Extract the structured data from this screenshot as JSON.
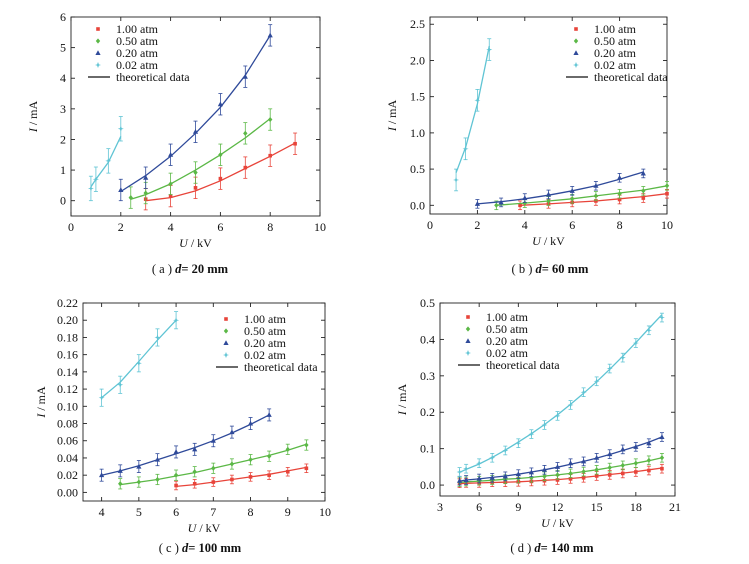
{
  "colors": {
    "1.00 atm": "#e8443a",
    "0.50 atm": "#5bb846",
    "0.20 atm": "#2f4a9a",
    "0.02 atm": "#5fc4d4",
    "theory": "#111111"
  },
  "chart_data": [
    {
      "id": "a",
      "type": "scatter",
      "caption_prefix": "( a )",
      "caption_d": "d",
      "caption_rest": "= 20  mm",
      "xlabel": "U / kV",
      "ylabel": "I / mA",
      "xlim": [
        0,
        10
      ],
      "ylim": [
        -0.5,
        6
      ],
      "xticks": [
        0,
        2,
        4,
        6,
        8,
        10
      ],
      "yticks": [
        0,
        1,
        2,
        3,
        4,
        5,
        6
      ],
      "xtick_labels": [
        "0",
        "2",
        "4",
        "6",
        "8",
        "10"
      ],
      "ytick_labels": [
        "0",
        "1",
        "2",
        "3",
        "4",
        "5",
        "6"
      ],
      "legend_position": "top-left",
      "legend": [
        "1.00  atm",
        "0.50  atm",
        "0.20  atm",
        "0.02  atm",
        "theoretical data"
      ],
      "series": [
        {
          "name": "1.00 atm",
          "x": [
            3,
            4,
            5,
            6,
            7,
            8,
            9
          ],
          "y": [
            0.05,
            0.15,
            0.42,
            0.72,
            1.08,
            1.47,
            1.86
          ],
          "err": 0.35,
          "fit": [
            0.0,
            0.1,
            0.32,
            0.65,
            1.05,
            1.45,
            1.88
          ]
        },
        {
          "name": "0.50 atm",
          "x": [
            2.4,
            3,
            4,
            5,
            6,
            7,
            8
          ],
          "y": [
            0.1,
            0.25,
            0.55,
            0.92,
            1.5,
            2.2,
            2.65
          ],
          "err": 0.35,
          "fit": [
            0.05,
            0.2,
            0.55,
            1.0,
            1.5,
            2.05,
            2.68
          ]
        },
        {
          "name": "0.20 atm",
          "x": [
            2,
            3,
            4,
            5,
            6,
            7,
            8
          ],
          "y": [
            0.35,
            0.75,
            1.5,
            2.25,
            3.15,
            4.05,
            5.4
          ],
          "err": 0.35,
          "fit": [
            0.3,
            0.82,
            1.45,
            2.2,
            3.05,
            4.1,
            5.4
          ]
        },
        {
          "name": "0.02 atm",
          "x": [
            0.8,
            1.0,
            1.5,
            2.0
          ],
          "y": [
            0.4,
            0.7,
            1.3,
            2.35
          ],
          "err": 0.4,
          "fit": [
            0.45,
            0.7,
            1.25,
            2.1
          ]
        }
      ]
    },
    {
      "id": "b",
      "type": "scatter",
      "caption_prefix": "( b )",
      "caption_d": "d",
      "caption_rest": "= 60  mm",
      "xlabel": "U / kV",
      "ylabel": "I / mA",
      "xlim": [
        0,
        10
      ],
      "ylim": [
        -0.12,
        2.6
      ],
      "xticks": [
        0,
        2,
        4,
        6,
        8,
        10
      ],
      "yticks": [
        0.0,
        0.5,
        1.0,
        1.5,
        2.0,
        2.5
      ],
      "xtick_labels": [
        "0",
        "2",
        "4",
        "6",
        "8",
        "10"
      ],
      "ytick_labels": [
        "0.0",
        "0.5",
        "1.0",
        "1.5",
        "2.0",
        "2.5"
      ],
      "legend_position": "top-right",
      "legend": [
        "1.00  atm",
        "0.50  atm",
        "0.20  atm",
        "0.02  atm",
        "theoretical data"
      ],
      "series": [
        {
          "name": "1.00 atm",
          "x": [
            3.8,
            5,
            6,
            7,
            8,
            9,
            10
          ],
          "y": [
            0.0,
            0.02,
            0.04,
            0.06,
            0.08,
            0.1,
            0.16
          ],
          "err": 0.06,
          "fit": [
            0.0,
            0.02,
            0.04,
            0.06,
            0.09,
            0.12,
            0.16
          ]
        },
        {
          "name": "0.50 atm",
          "x": [
            2.8,
            4,
            5,
            6,
            7,
            8,
            9,
            10
          ],
          "y": [
            0.0,
            0.03,
            0.06,
            0.09,
            0.13,
            0.16,
            0.2,
            0.27
          ],
          "err": 0.06,
          "fit": [
            0.0,
            0.03,
            0.06,
            0.09,
            0.13,
            0.17,
            0.21,
            0.27
          ]
        },
        {
          "name": "0.20 atm",
          "x": [
            2,
            3,
            4,
            5,
            6,
            7,
            8,
            9
          ],
          "y": [
            0.02,
            0.04,
            0.1,
            0.15,
            0.2,
            0.27,
            0.38,
            0.44
          ],
          "err": 0.06,
          "fit": [
            0.02,
            0.05,
            0.09,
            0.14,
            0.2,
            0.27,
            0.36,
            0.46
          ]
        },
        {
          "name": "0.02 atm",
          "x": [
            1.1,
            1.5,
            2.0,
            2.5
          ],
          "y": [
            0.35,
            0.78,
            1.45,
            2.15
          ],
          "err": 0.15,
          "fit": [
            0.45,
            0.8,
            1.4,
            2.2
          ]
        }
      ]
    },
    {
      "id": "c",
      "type": "scatter",
      "caption_prefix": "( c )",
      "caption_d": "d",
      "caption_rest": "= 100  mm",
      "xlabel": "U / kV",
      "ylabel": "I / mA",
      "xlim": [
        3.5,
        10
      ],
      "ylim": [
        -0.01,
        0.22
      ],
      "xticks": [
        4,
        5,
        6,
        7,
        8,
        9,
        10
      ],
      "yticks": [
        0.0,
        0.02,
        0.04,
        0.06,
        0.08,
        0.1,
        0.12,
        0.14,
        0.16,
        0.18,
        0.2,
        0.22
      ],
      "xtick_labels": [
        "4",
        "5",
        "6",
        "7",
        "8",
        "9",
        "10"
      ],
      "ytick_labels": [
        "0.00",
        "0.02",
        "0.04",
        "0.06",
        "0.08",
        "0.10",
        "0.12",
        "0.14",
        "0.16",
        "0.18",
        "0.20",
        "0.22"
      ],
      "legend_position": "top-right",
      "legend": [
        "1.00  atm",
        "0.50  atm",
        "0.20  atm",
        "0.02  atm",
        "theoretical data"
      ],
      "series": [
        {
          "name": "1.00 atm",
          "x": [
            6,
            6.5,
            7,
            7.5,
            8,
            8.5,
            9,
            9.5
          ],
          "y": [
            0.008,
            0.01,
            0.012,
            0.015,
            0.018,
            0.02,
            0.024,
            0.028
          ],
          "err": 0.005,
          "fit": [
            0.007,
            0.009,
            0.012,
            0.015,
            0.018,
            0.021,
            0.025,
            0.029
          ]
        },
        {
          "name": "0.50 atm",
          "x": [
            4.5,
            5,
            5.5,
            6,
            6.5,
            7,
            7.5,
            8,
            8.5,
            9,
            9.5
          ],
          "y": [
            0.01,
            0.012,
            0.015,
            0.02,
            0.024,
            0.028,
            0.033,
            0.038,
            0.042,
            0.05,
            0.055
          ],
          "err": 0.006,
          "fit": [
            0.009,
            0.012,
            0.015,
            0.019,
            0.023,
            0.028,
            0.033,
            0.038,
            0.043,
            0.049,
            0.056
          ]
        },
        {
          "name": "0.20 atm",
          "x": [
            4,
            4.5,
            5,
            5.5,
            6,
            6.5,
            7,
            7.5,
            8,
            8.5
          ],
          "y": [
            0.02,
            0.025,
            0.03,
            0.038,
            0.047,
            0.05,
            0.06,
            0.07,
            0.08,
            0.09
          ],
          "err": 0.007,
          "fit": [
            0.02,
            0.025,
            0.031,
            0.038,
            0.045,
            0.052,
            0.06,
            0.069,
            0.079,
            0.09
          ]
        },
        {
          "name": "0.02 atm",
          "x": [
            4,
            4.5,
            5,
            5.5,
            6
          ],
          "y": [
            0.11,
            0.125,
            0.15,
            0.18,
            0.2
          ],
          "err": 0.01,
          "fit": [
            0.11,
            0.128,
            0.152,
            0.177,
            0.2
          ]
        }
      ]
    },
    {
      "id": "d",
      "type": "scatter",
      "caption_prefix": "( d )",
      "caption_d": "d",
      "caption_rest": "= 140  mm",
      "xlabel": "U / kV",
      "ylabel": "I / mA",
      "xlim": [
        3,
        21
      ],
      "ylim": [
        -0.03,
        0.5
      ],
      "xticks": [
        3,
        6,
        9,
        12,
        15,
        18,
        21
      ],
      "yticks": [
        0.0,
        0.1,
        0.2,
        0.3,
        0.4,
        0.5
      ],
      "xtick_labels": [
        "3",
        "6",
        "9",
        "12",
        "15",
        "18",
        "21"
      ],
      "ytick_labels": [
        "0.0",
        "0.1",
        "0.2",
        "0.3",
        "0.4",
        "0.5"
      ],
      "legend_position": "top-left",
      "legend": [
        "1.00  atm",
        "0.50  atm",
        "0.20  atm",
        "0.02  atm",
        "theoretical data"
      ],
      "series": [
        {
          "name": "1.00 atm",
          "x": [
            4.5,
            5,
            6,
            7,
            8,
            9,
            10,
            11,
            12,
            13,
            14,
            15,
            16,
            17,
            18,
            19,
            20
          ],
          "y": [
            0.005,
            0.006,
            0.006,
            0.008,
            0.008,
            0.009,
            0.01,
            0.012,
            0.014,
            0.017,
            0.02,
            0.025,
            0.028,
            0.032,
            0.036,
            0.04,
            0.045
          ],
          "err": 0.012,
          "fit": [
            0.004,
            0.005,
            0.006,
            0.007,
            0.008,
            0.009,
            0.011,
            0.013,
            0.015,
            0.018,
            0.021,
            0.025,
            0.029,
            0.033,
            0.037,
            0.042,
            0.047
          ]
        },
        {
          "name": "0.50 atm",
          "x": [
            4.5,
            5,
            6,
            7,
            8,
            9,
            10,
            11,
            12,
            13,
            14,
            15,
            16,
            17,
            18,
            19,
            20
          ],
          "y": [
            0.008,
            0.01,
            0.012,
            0.014,
            0.016,
            0.018,
            0.02,
            0.024,
            0.028,
            0.032,
            0.037,
            0.042,
            0.048,
            0.054,
            0.06,
            0.068,
            0.075
          ],
          "err": 0.012,
          "fit": [
            0.007,
            0.009,
            0.011,
            0.013,
            0.016,
            0.018,
            0.021,
            0.025,
            0.028,
            0.032,
            0.037,
            0.042,
            0.048,
            0.054,
            0.06,
            0.067,
            0.075
          ]
        },
        {
          "name": "0.20 atm",
          "x": [
            4.5,
            5,
            6,
            7,
            8,
            9,
            10,
            11,
            12,
            13,
            14,
            15,
            16,
            17,
            18,
            19,
            20
          ],
          "y": [
            0.012,
            0.014,
            0.018,
            0.02,
            0.024,
            0.03,
            0.035,
            0.042,
            0.05,
            0.06,
            0.065,
            0.075,
            0.085,
            0.098,
            0.105,
            0.115,
            0.132
          ],
          "err": 0.012,
          "fit": [
            0.011,
            0.014,
            0.017,
            0.021,
            0.025,
            0.03,
            0.036,
            0.042,
            0.049,
            0.057,
            0.065,
            0.074,
            0.084,
            0.095,
            0.106,
            0.118,
            0.132
          ]
        },
        {
          "name": "0.02 atm",
          "x": [
            4.5,
            5,
            6,
            7,
            8,
            9,
            10,
            11,
            12,
            13,
            14,
            15,
            16,
            17,
            18,
            19,
            20
          ],
          "y": [
            0.036,
            0.045,
            0.06,
            0.075,
            0.095,
            0.115,
            0.14,
            0.165,
            0.19,
            0.22,
            0.255,
            0.285,
            0.32,
            0.35,
            0.39,
            0.425,
            0.46
          ],
          "err": 0.012,
          "fit": [
            0.035,
            0.043,
            0.058,
            0.076,
            0.096,
            0.118,
            0.141,
            0.166,
            0.193,
            0.222,
            0.252,
            0.284,
            0.318,
            0.354,
            0.391,
            0.43,
            0.468
          ]
        }
      ]
    }
  ]
}
